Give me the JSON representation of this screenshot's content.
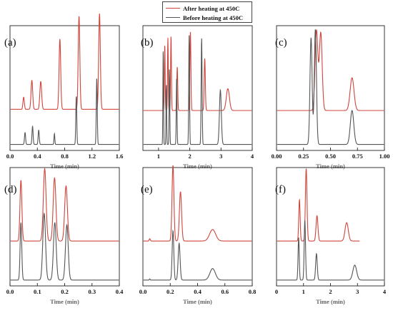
{
  "legend": {
    "after_label": "After heating at 450C",
    "before_label": "Before heating at 450C",
    "after_color": "#d0453b",
    "before_color": "#555555"
  },
  "chart_data": [
    {
      "type": "line",
      "panel_label": "(a)",
      "xlabel": "Time (min)",
      "xlim": [
        0,
        1.6
      ],
      "xticks": [
        "0.0",
        "0.4",
        "0.8",
        "1.2",
        "1.6"
      ],
      "xtick_values": [
        0,
        0.4,
        0.8,
        1.2,
        1.6
      ],
      "series": [
        {
          "name": "After heating at 450C",
          "baseline": 0.31,
          "peaks": [
            {
              "t": 0.2,
              "h": 0.1,
              "w": 0.01
            },
            {
              "t": 0.32,
              "h": 0.24,
              "w": 0.012
            },
            {
              "t": 0.45,
              "h": 0.23,
              "w": 0.013
            },
            {
              "t": 0.73,
              "h": 0.58,
              "w": 0.012
            },
            {
              "t": 1.01,
              "h": 0.77,
              "w": 0.012
            },
            {
              "t": 1.31,
              "h": 0.79,
              "w": 0.012
            }
          ]
        },
        {
          "name": "Before heating at 450C",
          "baseline": 0.02,
          "peaks": [
            {
              "t": 0.22,
              "h": 0.1,
              "w": 0.008
            },
            {
              "t": 0.33,
              "h": 0.15,
              "w": 0.008
            },
            {
              "t": 0.42,
              "h": 0.12,
              "w": 0.008
            },
            {
              "t": 0.65,
              "h": 0.09,
              "w": 0.006
            },
            {
              "t": 0.97,
              "h": 0.4,
              "w": 0.007
            },
            {
              "t": 1.27,
              "h": 0.55,
              "w": 0.007
            }
          ]
        }
      ]
    },
    {
      "type": "line",
      "panel_label": "(b)",
      "xlabel": "Time (min)",
      "xlim": [
        0.5,
        4
      ],
      "xticks": [
        "1",
        "2",
        "3",
        "4"
      ],
      "xtick_values": [
        1,
        2,
        3,
        4
      ],
      "series": [
        {
          "name": "After heating at 450C",
          "baseline": 0.3,
          "peaks": [
            {
              "t": 1.2,
              "h": 0.55,
              "w": 0.012
            },
            {
              "t": 1.3,
              "h": 0.6,
              "w": 0.012
            },
            {
              "t": 1.4,
              "h": 0.62,
              "w": 0.013
            },
            {
              "t": 1.6,
              "h": 0.36,
              "w": 0.015
            },
            {
              "t": 2.02,
              "h": 0.65,
              "w": 0.016
            },
            {
              "t": 2.48,
              "h": 0.43,
              "w": 0.018
            },
            {
              "t": 3.22,
              "h": 0.18,
              "w": 0.05
            }
          ]
        },
        {
          "name": "Before heating at 450C",
          "baseline": 0.02,
          "peaks": [
            {
              "t": 1.15,
              "h": 0.78,
              "w": 0.01
            },
            {
              "t": 1.25,
              "h": 0.5,
              "w": 0.01
            },
            {
              "t": 1.35,
              "h": 0.62,
              "w": 0.011
            },
            {
              "t": 1.58,
              "h": 0.55,
              "w": 0.012
            },
            {
              "t": 1.98,
              "h": 0.9,
              "w": 0.013
            },
            {
              "t": 2.38,
              "h": 0.88,
              "w": 0.015
            },
            {
              "t": 2.98,
              "h": 0.45,
              "w": 0.03
            }
          ]
        }
      ]
    },
    {
      "type": "line",
      "panel_label": "(c)",
      "xlabel": "Time (min)",
      "xlim": [
        0,
        1.0
      ],
      "xticks": [
        "0.00",
        "0.25",
        "0.50",
        "0.75",
        "1.00"
      ],
      "xtick_values": [
        0,
        0.25,
        0.5,
        0.75,
        1.0
      ],
      "series": [
        {
          "name": "After heating at 450C",
          "baseline": 0.3,
          "peaks": [
            {
              "t": 0.37,
              "h": 0.66,
              "w": 0.013
            },
            {
              "t": 0.41,
              "h": 0.64,
              "w": 0.013
            },
            {
              "t": 0.7,
              "h": 0.27,
              "w": 0.018
            }
          ]
        },
        {
          "name": "Before heating at 450C",
          "baseline": 0.02,
          "peaks": [
            {
              "t": 0.32,
              "h": 0.88,
              "w": 0.01
            },
            {
              "t": 0.36,
              "h": 0.95,
              "w": 0.01
            },
            {
              "t": 0.7,
              "h": 0.28,
              "w": 0.016
            }
          ]
        }
      ]
    },
    {
      "type": "line",
      "panel_label": "(d)",
      "xlabel": "Time (min)",
      "xlim": [
        0,
        0.4
      ],
      "xticks": [
        "0.0",
        "0.1",
        "0.2",
        "0.3",
        "0.4"
      ],
      "xtick_values": [
        0,
        0.1,
        0.2,
        0.3,
        0.4
      ],
      "series": [
        {
          "name": "After heating at 450C",
          "baseline": 0.36,
          "peaks": [
            {
              "t": 0.04,
              "h": 0.53,
              "w": 0.0035
            },
            {
              "t": 0.127,
              "h": 0.63,
              "w": 0.005
            },
            {
              "t": 0.163,
              "h": 0.55,
              "w": 0.005
            },
            {
              "t": 0.205,
              "h": 0.48,
              "w": 0.005
            }
          ]
        },
        {
          "name": "Before heating at 450C",
          "baseline": 0.02,
          "peaks": [
            {
              "t": 0.04,
              "h": 0.5,
              "w": 0.003
            },
            {
              "t": 0.125,
              "h": 0.58,
              "w": 0.005
            },
            {
              "t": 0.164,
              "h": 0.5,
              "w": 0.005
            },
            {
              "t": 0.208,
              "h": 0.48,
              "w": 0.005
            }
          ]
        }
      ]
    },
    {
      "type": "line",
      "panel_label": "(e)",
      "xlabel": "Time (min)",
      "xlim": [
        0,
        0.8
      ],
      "xticks": [
        "0.0",
        "0.2",
        "0.4",
        "0.6",
        "0.8"
      ],
      "xtick_values": [
        0,
        0.2,
        0.4,
        0.6,
        0.8
      ],
      "series": [
        {
          "name": "After heating at 450C",
          "baseline": 0.36,
          "peaks": [
            {
              "t": 0.05,
              "h": 0.02,
              "w": 0.004
            },
            {
              "t": 0.22,
              "h": 0.66,
              "w": 0.007
            },
            {
              "t": 0.275,
              "h": 0.43,
              "w": 0.008
            },
            {
              "t": 0.51,
              "h": 0.1,
              "w": 0.022
            }
          ]
        },
        {
          "name": "Before heating at 450C",
          "baseline": 0.02,
          "peaks": [
            {
              "t": 0.05,
              "h": 0.01,
              "w": 0.003
            },
            {
              "t": 0.22,
              "h": 0.43,
              "w": 0.006
            },
            {
              "t": 0.265,
              "h": 0.32,
              "w": 0.007
            },
            {
              "t": 0.51,
              "h": 0.1,
              "w": 0.02
            }
          ]
        }
      ]
    },
    {
      "type": "line",
      "panel_label": "(f)",
      "xlabel": "Time (min)",
      "xlim": [
        0,
        4
      ],
      "xticks": [
        "0",
        "1",
        "2",
        "3",
        "4"
      ],
      "xtick_values": [
        0,
        1,
        2,
        3,
        4
      ],
      "series": [
        {
          "name": "After heating at 450C",
          "baseline": 0.36,
          "peaks": [
            {
              "t": 0.85,
              "h": 0.36,
              "w": 0.025
            },
            {
              "t": 1.1,
              "h": 0.63,
              "w": 0.03
            },
            {
              "t": 1.5,
              "h": 0.22,
              "w": 0.035
            },
            {
              "t": 2.6,
              "h": 0.16,
              "w": 0.06
            }
          ]
        },
        {
          "name": "Before heating at 450C",
          "baseline": 0.02,
          "peaks": [
            {
              "t": 0.82,
              "h": 0.37,
              "w": 0.022
            },
            {
              "t": 1.05,
              "h": 0.52,
              "w": 0.025
            },
            {
              "t": 1.48,
              "h": 0.23,
              "w": 0.03
            },
            {
              "t": 2.9,
              "h": 0.13,
              "w": 0.07
            }
          ]
        }
      ]
    }
  ]
}
